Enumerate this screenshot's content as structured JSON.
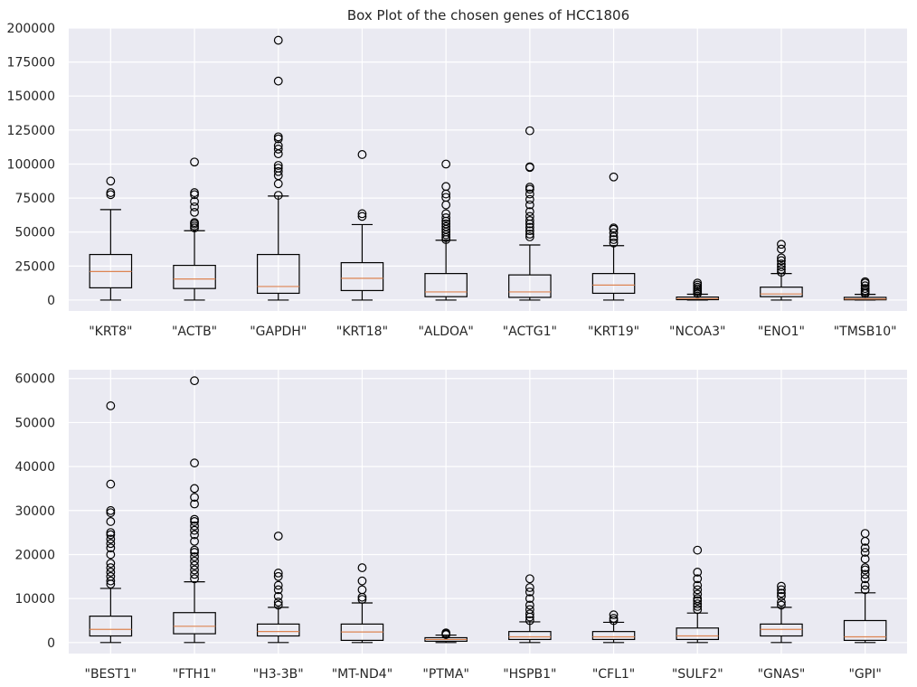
{
  "chart_data": [
    {
      "type": "boxplot",
      "title": "Box Plot of the chosen genes of HCC1806",
      "xlabel": "",
      "ylabel": "",
      "ylim": [
        -8000,
        200000
      ],
      "yticks": [
        0,
        25000,
        50000,
        75000,
        100000,
        125000,
        150000,
        175000,
        200000
      ],
      "grid": true,
      "categories": [
        "\"KRT8\"",
        "\"ACTB\"",
        "\"GAPDH\"",
        "\"KRT18\"",
        "\"ALDOA\"",
        "\"ACTG1\"",
        "\"KRT19\"",
        "\"NCOA3\"",
        "\"ENO1\"",
        "\"TMSB10\""
      ],
      "boxes": [
        {
          "whislo": 0,
          "q1": 9000,
          "med": 21000,
          "q3": 33500,
          "whishi": 66500,
          "fliers": [
            77500,
            79000,
            87500
          ]
        },
        {
          "whislo": 0,
          "q1": 8500,
          "med": 15500,
          "q3": 25500,
          "whishi": 51000,
          "fliers": [
            53000,
            54500,
            56000,
            57000,
            64500,
            68500,
            72500,
            77500,
            79000,
            101500
          ]
        },
        {
          "whislo": 0,
          "q1": 5000,
          "med": 10000,
          "q3": 33500,
          "whishi": 76500,
          "fliers": [
            77000,
            85500,
            91500,
            94500,
            97000,
            99000,
            107500,
            111000,
            113500,
            118500,
            120000,
            161000,
            191000
          ]
        },
        {
          "whislo": 0,
          "q1": 7000,
          "med": 16000,
          "q3": 27500,
          "whishi": 55500,
          "fliers": [
            61500,
            63500,
            107000
          ]
        },
        {
          "whislo": 0,
          "q1": 2500,
          "med": 6000,
          "q3": 19500,
          "whishi": 44000,
          "fliers": [
            44500,
            46000,
            48000,
            50000,
            52000,
            54000,
            56000,
            58000,
            60500,
            63500,
            70000,
            75500,
            78000,
            83500,
            100000
          ]
        },
        {
          "whislo": 0,
          "q1": 2000,
          "med": 6000,
          "q3": 18500,
          "whishi": 40500,
          "fliers": [
            46500,
            48500,
            51000,
            53500,
            56000,
            58500,
            61500,
            65000,
            70000,
            74000,
            78000,
            81500,
            83000,
            97500,
            98000,
            124500
          ]
        },
        {
          "whislo": 0,
          "q1": 5000,
          "med": 11000,
          "q3": 19500,
          "whishi": 40000,
          "fliers": [
            42000,
            44500,
            46500,
            49500,
            52000,
            53000,
            90500
          ]
        },
        {
          "whislo": 0,
          "q1": 300,
          "med": 1000,
          "q3": 2200,
          "whishi": 4300,
          "fliers": [
            4800,
            6000,
            7200,
            8300,
            9500,
            11000,
            12500
          ]
        },
        {
          "whislo": 0,
          "q1": 2500,
          "med": 4500,
          "q3": 9500,
          "whishi": 19500,
          "fliers": [
            20500,
            22500,
            24500,
            26500,
            29000,
            31000,
            37500,
            41000
          ]
        },
        {
          "whislo": 0,
          "q1": 200,
          "med": 800,
          "q3": 2000,
          "whishi": 4200,
          "fliers": [
            4700,
            5800,
            7000,
            8500,
            10500,
            12500,
            13500
          ]
        }
      ]
    },
    {
      "type": "boxplot",
      "title": "",
      "xlabel": "",
      "ylabel": "",
      "ylim": [
        -2500,
        62000
      ],
      "yticks": [
        0,
        10000,
        20000,
        30000,
        40000,
        50000,
        60000
      ],
      "grid": true,
      "categories": [
        "\"BEST1\"",
        "\"FTH1\"",
        "\"H3-3B\"",
        "\"MT-ND4\"",
        "\"PTMA\"",
        "\"HSPB1\"",
        "\"CFL1\"",
        "\"SULF2\"",
        "\"GNAS\"",
        "\"GPI\""
      ],
      "boxes": [
        {
          "whislo": 0,
          "q1": 1500,
          "med": 3000,
          "q3": 6000,
          "whishi": 12300,
          "fliers": [
            13300,
            14000,
            15000,
            16000,
            17000,
            18000,
            20000,
            21500,
            22500,
            23500,
            24500,
            25000,
            27500,
            29500,
            30000,
            36000,
            53800
          ]
        },
        {
          "whislo": 0,
          "q1": 2000,
          "med": 3700,
          "q3": 6800,
          "whishi": 13800,
          "fliers": [
            14500,
            15500,
            16500,
            17500,
            18500,
            19500,
            20500,
            21000,
            23000,
            24500,
            25500,
            26500,
            27500,
            28000,
            31500,
            33000,
            35000,
            40800,
            59500
          ]
        },
        {
          "whislo": 0,
          "q1": 1500,
          "med": 2500,
          "q3": 4200,
          "whishi": 8000,
          "fliers": [
            8500,
            9200,
            10500,
            12000,
            13000,
            15000,
            15800,
            24200
          ]
        },
        {
          "whislo": 0,
          "q1": 500,
          "med": 2400,
          "q3": 4200,
          "whishi": 9000,
          "fliers": [
            9800,
            10300,
            12000,
            14000,
            17000
          ]
        },
        {
          "whislo": 0,
          "q1": 300,
          "med": 700,
          "q3": 1100,
          "whishi": 1700,
          "fliers": [
            1800,
            2000,
            2200
          ]
        },
        {
          "whislo": 0,
          "q1": 700,
          "med": 1300,
          "q3": 2500,
          "whishi": 4700,
          "fliers": [
            5000,
            5800,
            6500,
            7500,
            8500,
            10000,
            11500,
            12500,
            14500
          ]
        },
        {
          "whislo": 0,
          "q1": 700,
          "med": 1300,
          "q3": 2500,
          "whishi": 4600,
          "fliers": [
            5000,
            5500,
            6300
          ]
        },
        {
          "whislo": 0,
          "q1": 700,
          "med": 1500,
          "q3": 3300,
          "whishi": 6700,
          "fliers": [
            7500,
            8200,
            8800,
            9500,
            10000,
            11000,
            12000,
            13000,
            14500,
            16000,
            21000
          ]
        },
        {
          "whislo": 0,
          "q1": 1500,
          "med": 3000,
          "q3": 4200,
          "whishi": 8000,
          "fliers": [
            8500,
            9200,
            10500,
            11200,
            12000,
            12800
          ]
        },
        {
          "whislo": 0,
          "q1": 500,
          "med": 1300,
          "q3": 5000,
          "whishi": 11300,
          "fliers": [
            12000,
            13000,
            14500,
            15500,
            16500,
            17000,
            19000,
            20500,
            21500,
            23000,
            24800
          ]
        }
      ]
    }
  ],
  "colors": {
    "plot_bg": "#eaeaf2",
    "grid": "#ffffff",
    "box": "#000000",
    "median": "#dd8452",
    "text": "#262626"
  }
}
